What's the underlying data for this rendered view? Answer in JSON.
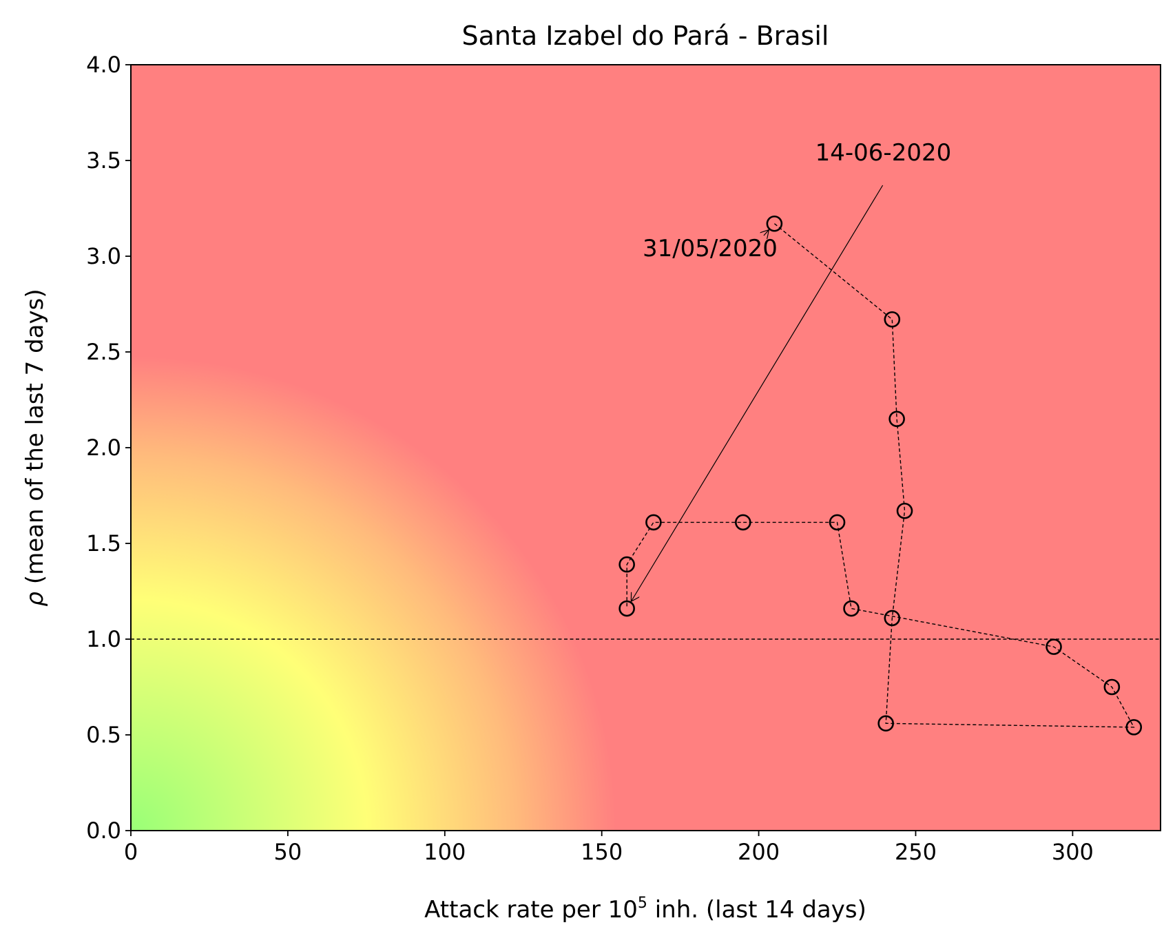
{
  "chart_data": {
    "type": "scatter",
    "title": "Santa Izabel do Pará - Brasil",
    "xlabel": {
      "prefix": "Attack rate per 10",
      "superscript": "5",
      "suffix": " inh. (last 14 days)"
    },
    "ylabel": {
      "symbol": "ρ",
      "text": " (mean of the last 7 days)"
    },
    "xlim": [
      0,
      328
    ],
    "ylim": [
      0,
      4
    ],
    "xticks": [
      0,
      50,
      100,
      150,
      200,
      250,
      300
    ],
    "xtick_labels": [
      "0",
      "50",
      "100",
      "150",
      "200",
      "250",
      "300"
    ],
    "yticks": [
      0,
      0.5,
      1,
      1.5,
      2,
      2.5,
      3,
      3.5,
      4
    ],
    "ytick_labels": [
      "0.0",
      "0.5",
      "1.0",
      "1.5",
      "2.0",
      "2.5",
      "3.0",
      "3.5",
      "4.0"
    ],
    "reference_line": {
      "y": 1.0,
      "style": "dashed"
    },
    "background": {
      "type": "radial-risk-gradient",
      "colors": [
        "#99ff77",
        "#ffff77",
        "#ff8080"
      ]
    },
    "series": [
      {
        "marker": "open-circle",
        "line": "dashed",
        "x": [
          205,
          242.5,
          244,
          246.5,
          242.5,
          240.5,
          319.5,
          312.5,
          294,
          229.5,
          225,
          195,
          166.5,
          158,
          158
        ],
        "y": [
          3.17,
          2.67,
          2.15,
          1.67,
          1.11,
          0.56,
          0.54,
          0.75,
          0.96,
          1.16,
          1.61,
          1.61,
          1.61,
          1.39,
          1.16
        ]
      }
    ],
    "annotations": [
      {
        "text": "31/05/2020",
        "x": 163,
        "y": 3.0,
        "arrow_to_index": 0
      },
      {
        "text": "14-06-2020",
        "x": 218,
        "y": 3.5,
        "arrow_to_index": 14
      }
    ]
  }
}
